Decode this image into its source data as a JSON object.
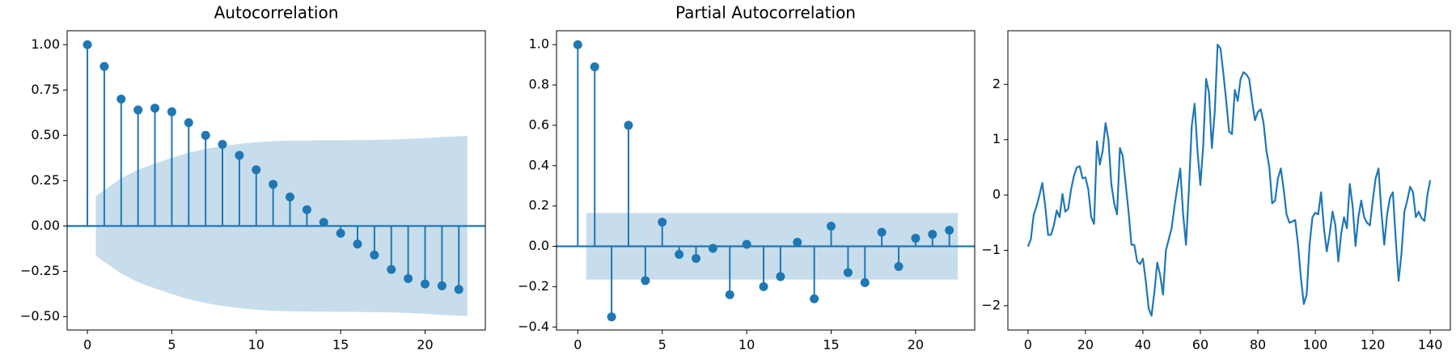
{
  "chart_data": [
    {
      "type": "stem",
      "title": "Autocorrelation",
      "color": "#1f77b4",
      "x": [
        0,
        1,
        2,
        3,
        4,
        5,
        6,
        7,
        8,
        9,
        10,
        11,
        12,
        13,
        14,
        15,
        16,
        17,
        18,
        19,
        20,
        21,
        22
      ],
      "values": [
        1.0,
        0.88,
        0.7,
        0.64,
        0.65,
        0.63,
        0.57,
        0.5,
        0.45,
        0.39,
        0.31,
        0.23,
        0.16,
        0.09,
        0.02,
        -0.04,
        -0.1,
        -0.16,
        -0.24,
        -0.29,
        -0.32,
        -0.33,
        -0.35
      ],
      "confidence_band": {
        "x": [
          0.5,
          2,
          3,
          4,
          5,
          6,
          7,
          8,
          9,
          10,
          11,
          12,
          13,
          14,
          15,
          16,
          17,
          18,
          19,
          20,
          21,
          22.5
        ],
        "upper": [
          0.165,
          0.263,
          0.31,
          0.344,
          0.376,
          0.404,
          0.425,
          0.441,
          0.453,
          0.462,
          0.468,
          0.471,
          0.472,
          0.473,
          0.473,
          0.474,
          0.475,
          0.477,
          0.48,
          0.485,
          0.491,
          0.497
        ],
        "lower": [
          -0.165,
          -0.263,
          -0.31,
          -0.344,
          -0.376,
          -0.404,
          -0.425,
          -0.441,
          -0.453,
          -0.462,
          -0.468,
          -0.471,
          -0.472,
          -0.473,
          -0.473,
          -0.474,
          -0.475,
          -0.477,
          -0.48,
          -0.485,
          -0.491,
          -0.497
        ]
      },
      "xlim": [
        -1.2,
        23.57
      ],
      "ylim": [
        -0.574,
        1.077
      ],
      "xticks": [
        0,
        5,
        10,
        15,
        20
      ],
      "yticks": [
        {
          "value": -0.5,
          "label": "−0.50"
        },
        {
          "value": -0.25,
          "label": "−0.25"
        },
        {
          "value": 0,
          "label": "0.00"
        },
        {
          "value": 0.25,
          "label": "0.25"
        },
        {
          "value": 0.5,
          "label": "0.50"
        },
        {
          "value": 0.75,
          "label": "0.75"
        },
        {
          "value": 1,
          "label": "1.00"
        }
      ]
    },
    {
      "type": "stem",
      "title": "Partial Autocorrelation",
      "color": "#1f77b4",
      "x": [
        0,
        1,
        2,
        3,
        4,
        5,
        6,
        7,
        8,
        9,
        10,
        11,
        12,
        13,
        14,
        15,
        16,
        17,
        18,
        19,
        20,
        21,
        22
      ],
      "values": [
        1.0,
        0.89,
        -0.35,
        0.6,
        -0.17,
        0.12,
        -0.04,
        -0.06,
        -0.01,
        -0.24,
        0.01,
        -0.2,
        -0.15,
        0.02,
        -0.26,
        0.1,
        -0.13,
        -0.18,
        0.07,
        -0.1,
        0.04,
        0.06,
        0.08
      ],
      "confidence_band": {
        "x": [
          0.5,
          22.5
        ],
        "upper": [
          0.165,
          0.165
        ],
        "lower": [
          -0.165,
          -0.165
        ]
      },
      "xlim": [
        -1.26,
        23.5
      ],
      "ylim": [
        -0.415,
        1.069
      ],
      "xticks": [
        0,
        5,
        10,
        15,
        20
      ],
      "yticks": [
        {
          "value": -0.4,
          "label": "−0.4"
        },
        {
          "value": -0.2,
          "label": "−0.2"
        },
        {
          "value": 0,
          "label": "0.0"
        },
        {
          "value": 0.2,
          "label": "0.2"
        },
        {
          "value": 0.4,
          "label": "0.4"
        },
        {
          "value": 0.6,
          "label": "0.6"
        },
        {
          "value": 0.8,
          "label": "0.8"
        },
        {
          "value": 1,
          "label": "1.0"
        }
      ]
    },
    {
      "type": "line",
      "color": "#1f77b4",
      "values": [
        -0.93,
        -0.8,
        -0.35,
        -0.2,
        0.0,
        0.22,
        -0.2,
        -0.72,
        -0.72,
        -0.55,
        -0.28,
        -0.4,
        0.02,
        -0.3,
        -0.25,
        0.1,
        0.35,
        0.5,
        0.52,
        0.3,
        0.32,
        0.1,
        -0.4,
        -0.52,
        0.97,
        0.55,
        0.8,
        1.3,
        1.0,
        0.2,
        -0.15,
        -0.35,
        0.85,
        0.7,
        0.2,
        -0.3,
        -0.9,
        -0.9,
        -1.2,
        -1.25,
        -1.15,
        -1.55,
        -2.05,
        -2.18,
        -1.75,
        -1.22,
        -1.45,
        -1.8,
        -1.0,
        -0.8,
        -0.6,
        -0.2,
        0.15,
        0.48,
        -0.35,
        -0.9,
        0.1,
        1.25,
        1.65,
        0.8,
        0.18,
        0.9,
        2.1,
        1.85,
        0.85,
        1.5,
        2.72,
        2.65,
        2.2,
        1.7,
        1.15,
        1.1,
        1.9,
        1.7,
        2.1,
        2.22,
        2.18,
        2.1,
        1.7,
        1.35,
        1.5,
        1.55,
        1.3,
        0.8,
        0.5,
        -0.15,
        -0.1,
        0.3,
        0.48,
        0.1,
        -0.35,
        -0.5,
        -0.48,
        -0.45,
        -0.9,
        -1.5,
        -1.97,
        -1.8,
        -0.9,
        -0.4,
        -0.32,
        -0.35,
        0.05,
        -0.6,
        -1.02,
        -0.7,
        -0.3,
        -0.55,
        -1.2,
        -0.7,
        -0.4,
        -0.6,
        0.2,
        -0.2,
        -0.92,
        -0.4,
        -0.1,
        -0.4,
        -0.5,
        -0.55,
        -0.1,
        0.3,
        0.48,
        -0.3,
        -0.9,
        -0.35,
        -0.05,
        0.05,
        -0.8,
        -1.55,
        -1.05,
        -0.3,
        -0.1,
        0.15,
        0.05,
        -0.4,
        -0.3,
        -0.42,
        -0.47,
        0.0,
        0.27
      ],
      "xlim": [
        -7,
        147
      ],
      "ylim": [
        -2.44,
        2.97
      ],
      "xticks": [
        0,
        20,
        40,
        60,
        80,
        100,
        120,
        140
      ],
      "yticks": [
        {
          "value": -2,
          "label": "−2"
        },
        {
          "value": -1,
          "label": "−1"
        },
        0,
        1,
        2
      ]
    }
  ]
}
